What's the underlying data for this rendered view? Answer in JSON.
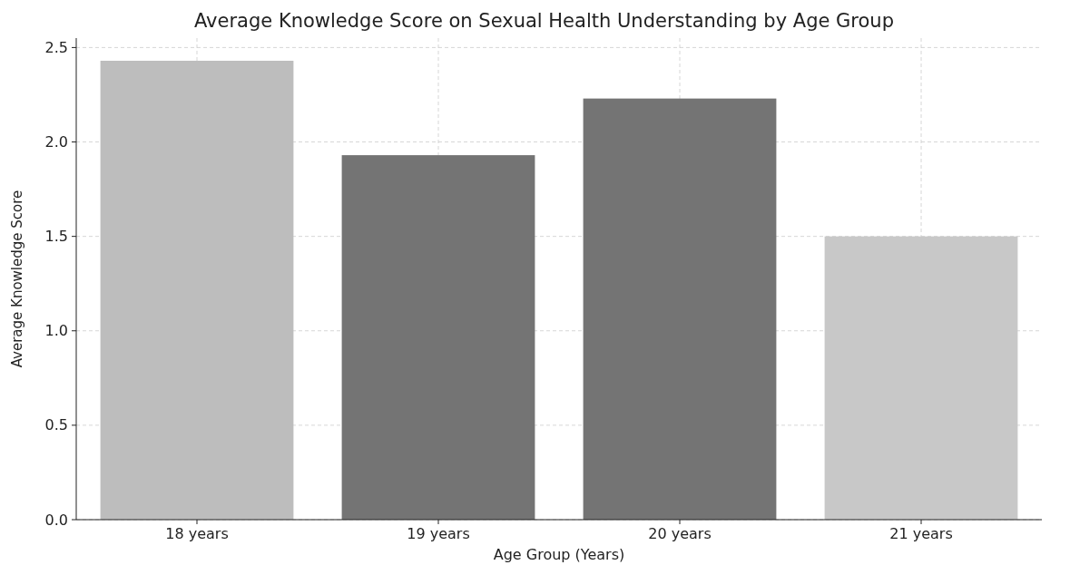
{
  "chart_data": {
    "type": "bar",
    "title": "Average Knowledge Score on Sexual Health Understanding by Age Group",
    "xlabel": "Age Group (Years)",
    "ylabel": "Average Knowledge Score",
    "categories": [
      "18 years",
      "19 years",
      "20 years",
      "21 years"
    ],
    "values": [
      2.43,
      1.93,
      2.23,
      1.5
    ],
    "colors": [
      "#bdbdbd",
      "#747474",
      "#747474",
      "#c8c8c8"
    ],
    "ylim": [
      0,
      2.55
    ],
    "yticks": [
      {
        "value": 0,
        "label": "0.0"
      },
      {
        "value": 0.5,
        "label": "0.5"
      },
      {
        "value": 1,
        "label": "1.0"
      },
      {
        "value": 1.5,
        "label": "1.5"
      },
      {
        "value": 2,
        "label": "2.0"
      },
      {
        "value": 2.5,
        "label": "2.5"
      }
    ],
    "grid": true
  }
}
